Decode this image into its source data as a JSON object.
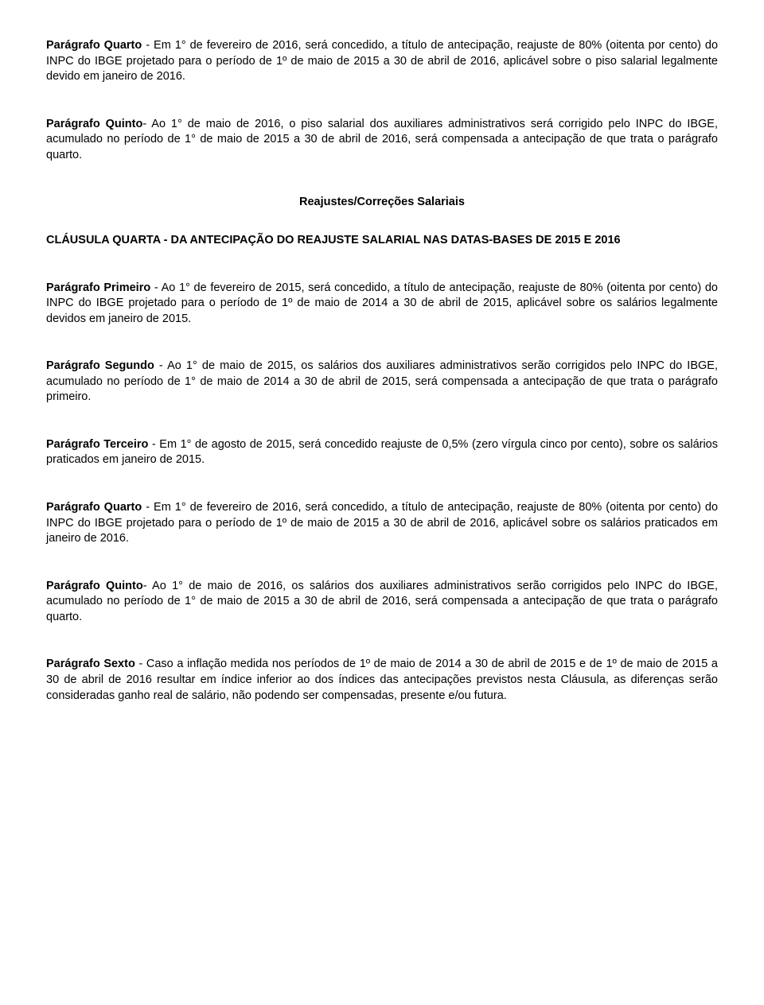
{
  "p1": {
    "lead": "Parágrafo Quarto",
    "rest": " - Em 1° de fevereiro de 2016, será concedido, a título de antecipação, reajuste de 80% (oitenta por cento) do INPC do IBGE projetado para o período de 1º de maio de 2015 a 30 de abril de 2016, aplicável sobre o piso salarial legalmente devido em janeiro de 2016."
  },
  "p2": {
    "lead": "Parágrafo Quinto",
    "rest": "- Ao 1° de maio de 2016, o piso salarial dos auxiliares administrativos será corrigido pelo INPC do IBGE, acumulado no período de 1° de maio de 2015 a 30 de abril de 2016, será compensada a antecipação de que trata o parágrafo quarto."
  },
  "section_heading": "Reajustes/Correções Salariais",
  "clause_title": "CLÁUSULA QUARTA - DA ANTECIPAÇÃO DO REAJUSTE SALARIAL NAS DATAS-BASES DE 2015 E 2016",
  "p3": {
    "lead": "Parágrafo Primeiro",
    "rest": " - Ao 1° de fevereiro de 2015, será concedido, a título de antecipação, reajuste de 80% (oitenta por cento) do INPC do IBGE projetado para o período de 1º de maio de 2014 a 30 de abril de 2015, aplicável sobre os salários legalmente devidos em janeiro de 2015."
  },
  "p4": {
    "lead": "Parágrafo Segundo",
    "rest": " - Ao 1° de maio de 2015, os salários dos auxiliares administrativos serão corrigidos pelo INPC do IBGE, acumulado no período de 1° de maio de 2014 a 30 de abril de 2015, será compensada a antecipação de que trata o parágrafo primeiro."
  },
  "p5": {
    "lead": "Parágrafo Terceiro",
    "rest": " - Em 1° de agosto de 2015, será concedido reajuste de 0,5% (zero vírgula cinco por cento), sobre os salários praticados em janeiro de 2015."
  },
  "p6": {
    "lead": "Parágrafo Quarto",
    "rest": " - Em 1° de fevereiro de 2016, será concedido, a título de antecipação, reajuste de 80% (oitenta por cento) do INPC do IBGE projetado para o período de 1º de maio de 2015 a 30 de abril de 2016, aplicável sobre os salários praticados em janeiro de 2016."
  },
  "p7": {
    "lead": "Parágrafo Quinto",
    "rest": "- Ao 1° de maio de 2016, os salários dos auxiliares administrativos serão corrigidos pelo INPC do IBGE, acumulado no período de 1° de maio de 2015 a 30 de abril de 2016, será compensada a antecipação de que trata o parágrafo quarto."
  },
  "p8": {
    "lead": "Parágrafo Sexto",
    "rest": " - Caso a inflação medida nos períodos de 1º de maio de 2014 a 30 de abril de 2015 e de 1º de maio de 2015 a 30 de abril de 2016 resultar em índice inferior ao dos índices das antecipações previstos nesta Cláusula, as diferenças serão consideradas ganho real de salário, não podendo ser compensadas, presente e/ou futura."
  }
}
